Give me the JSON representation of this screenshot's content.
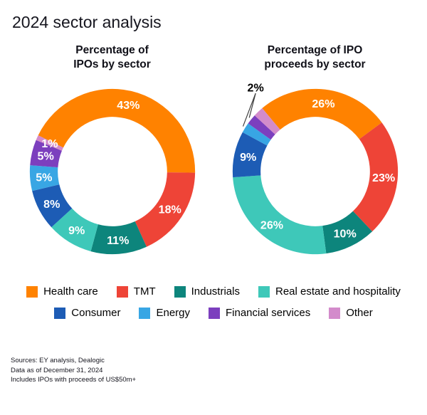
{
  "header": {
    "title": "2024 sector analysis"
  },
  "chart_data": [
    {
      "type": "pie",
      "variant": "donut",
      "title": "Percentage of IPOs by sector",
      "title_lines": [
        "Percentage of",
        "IPOs by sector"
      ],
      "start_angle_deg": -64,
      "legend_position": "bottom",
      "slices": [
        {
          "label": "Health care",
          "value": 43,
          "color": "#FF8200",
          "label_style": "inside"
        },
        {
          "label": "TMT",
          "value": 18,
          "color": "#EE4437",
          "label_style": "inside"
        },
        {
          "label": "Industrials",
          "value": 11,
          "color": "#0D857C",
          "label_style": "inside"
        },
        {
          "label": "Real estate and hospitality",
          "value": 9,
          "color": "#3EC8B9",
          "label_style": "inside"
        },
        {
          "label": "Consumer",
          "value": 8,
          "color": "#1D5CB5",
          "label_style": "inside"
        },
        {
          "label": "Energy",
          "value": 5,
          "color": "#38A6E4",
          "label_style": "inside"
        },
        {
          "label": "Financial services",
          "value": 5,
          "color": "#7C3FBE",
          "label_style": "inside"
        },
        {
          "label": "Other",
          "value": 1,
          "color": "#D38BCB",
          "label_style": "inside"
        }
      ]
    },
    {
      "type": "pie",
      "variant": "donut",
      "title": "Percentage of IPO proceeds by sector",
      "title_lines": [
        "Percentage of IPO",
        "proceeds by sector"
      ],
      "start_angle_deg": -40,
      "legend_position": "bottom",
      "slices": [
        {
          "label": "Health care",
          "value": 26,
          "color": "#FF8200",
          "label_style": "inside"
        },
        {
          "label": "TMT",
          "value": 23,
          "color": "#EE4437",
          "label_style": "inside"
        },
        {
          "label": "Industrials",
          "value": 10,
          "color": "#0D857C",
          "label_style": "inside"
        },
        {
          "label": "Real estate and hospitality",
          "value": 26,
          "color": "#3EC8B9",
          "label_style": "inside"
        },
        {
          "label": "Consumer",
          "value": 9,
          "color": "#1D5CB5",
          "label_style": "inside"
        },
        {
          "label": "Energy",
          "value": 2,
          "color": "#38A6E4",
          "label_style": "none"
        },
        {
          "label": "Financial services",
          "value": 2,
          "color": "#7C3FBE",
          "label_style": "none"
        },
        {
          "label": "Other",
          "value": 2,
          "color": "#D38BCB",
          "label_style": "none"
        }
      ],
      "callout": {
        "text": "2%",
        "target_labels": [
          "Energy",
          "Financial services"
        ]
      }
    }
  ],
  "legend": {
    "rows": [
      [
        {
          "label": "Health care",
          "color": "#FF8200"
        },
        {
          "label": "TMT",
          "color": "#EE4437"
        },
        {
          "label": "Industrials",
          "color": "#0D857C"
        },
        {
          "label": "Real estate and hospitality",
          "color": "#3EC8B9"
        }
      ],
      [
        {
          "label": "Consumer",
          "color": "#1D5CB5"
        },
        {
          "label": "Energy",
          "color": "#38A6E4"
        },
        {
          "label": "Financial services",
          "color": "#7C3FBE"
        },
        {
          "label": "Other",
          "color": "#D38BCB"
        }
      ]
    ]
  },
  "footnotes": [
    "Sources: EY analysis, Dealogic",
    "Data as of December 31, 2024",
    "Includes IPOs with proceeds of US$50m+"
  ]
}
